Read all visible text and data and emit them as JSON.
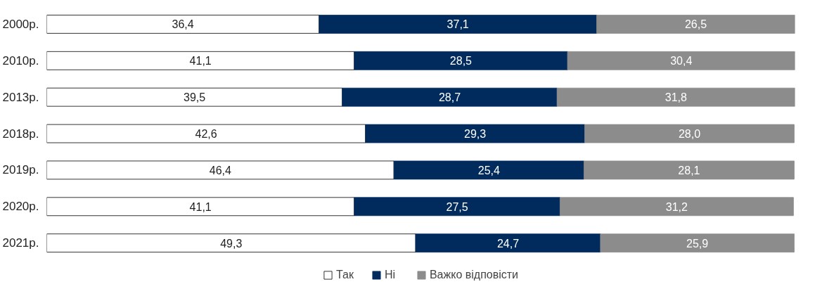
{
  "chart_data": {
    "type": "bar",
    "orientation": "horizontal",
    "stacked": true,
    "legend": "bottom",
    "tick_labels": "y",
    "categories": [
      "2000р.",
      "2010р.",
      "2013р.",
      "2018р.",
      "2019р.",
      "2020р.",
      "2021р."
    ],
    "series": [
      {
        "name": "Так",
        "color": "#ffffff",
        "values": [
          36.4,
          41.1,
          39.5,
          42.6,
          46.4,
          41.1,
          49.3
        ],
        "value_labels": [
          "36,4",
          "41,1",
          "39,5",
          "42,6",
          "46,4",
          "41,1",
          "49,3"
        ]
      },
      {
        "name": "Ні",
        "color": "#002b5c",
        "values": [
          37.1,
          28.5,
          28.7,
          29.3,
          25.4,
          27.5,
          24.7
        ],
        "value_labels": [
          "37,1",
          "28,5",
          "28,7",
          "29,3",
          "25,4",
          "27,5",
          "24,7"
        ]
      },
      {
        "name": "Важко відповісти",
        "color": "#8c8c8c",
        "values": [
          26.5,
          30.4,
          31.8,
          28.0,
          28.1,
          31.2,
          25.9
        ],
        "value_labels": [
          "26,5",
          "30,4",
          "31,8",
          "28,0",
          "28,1",
          "31,2",
          "25,9"
        ]
      }
    ]
  }
}
